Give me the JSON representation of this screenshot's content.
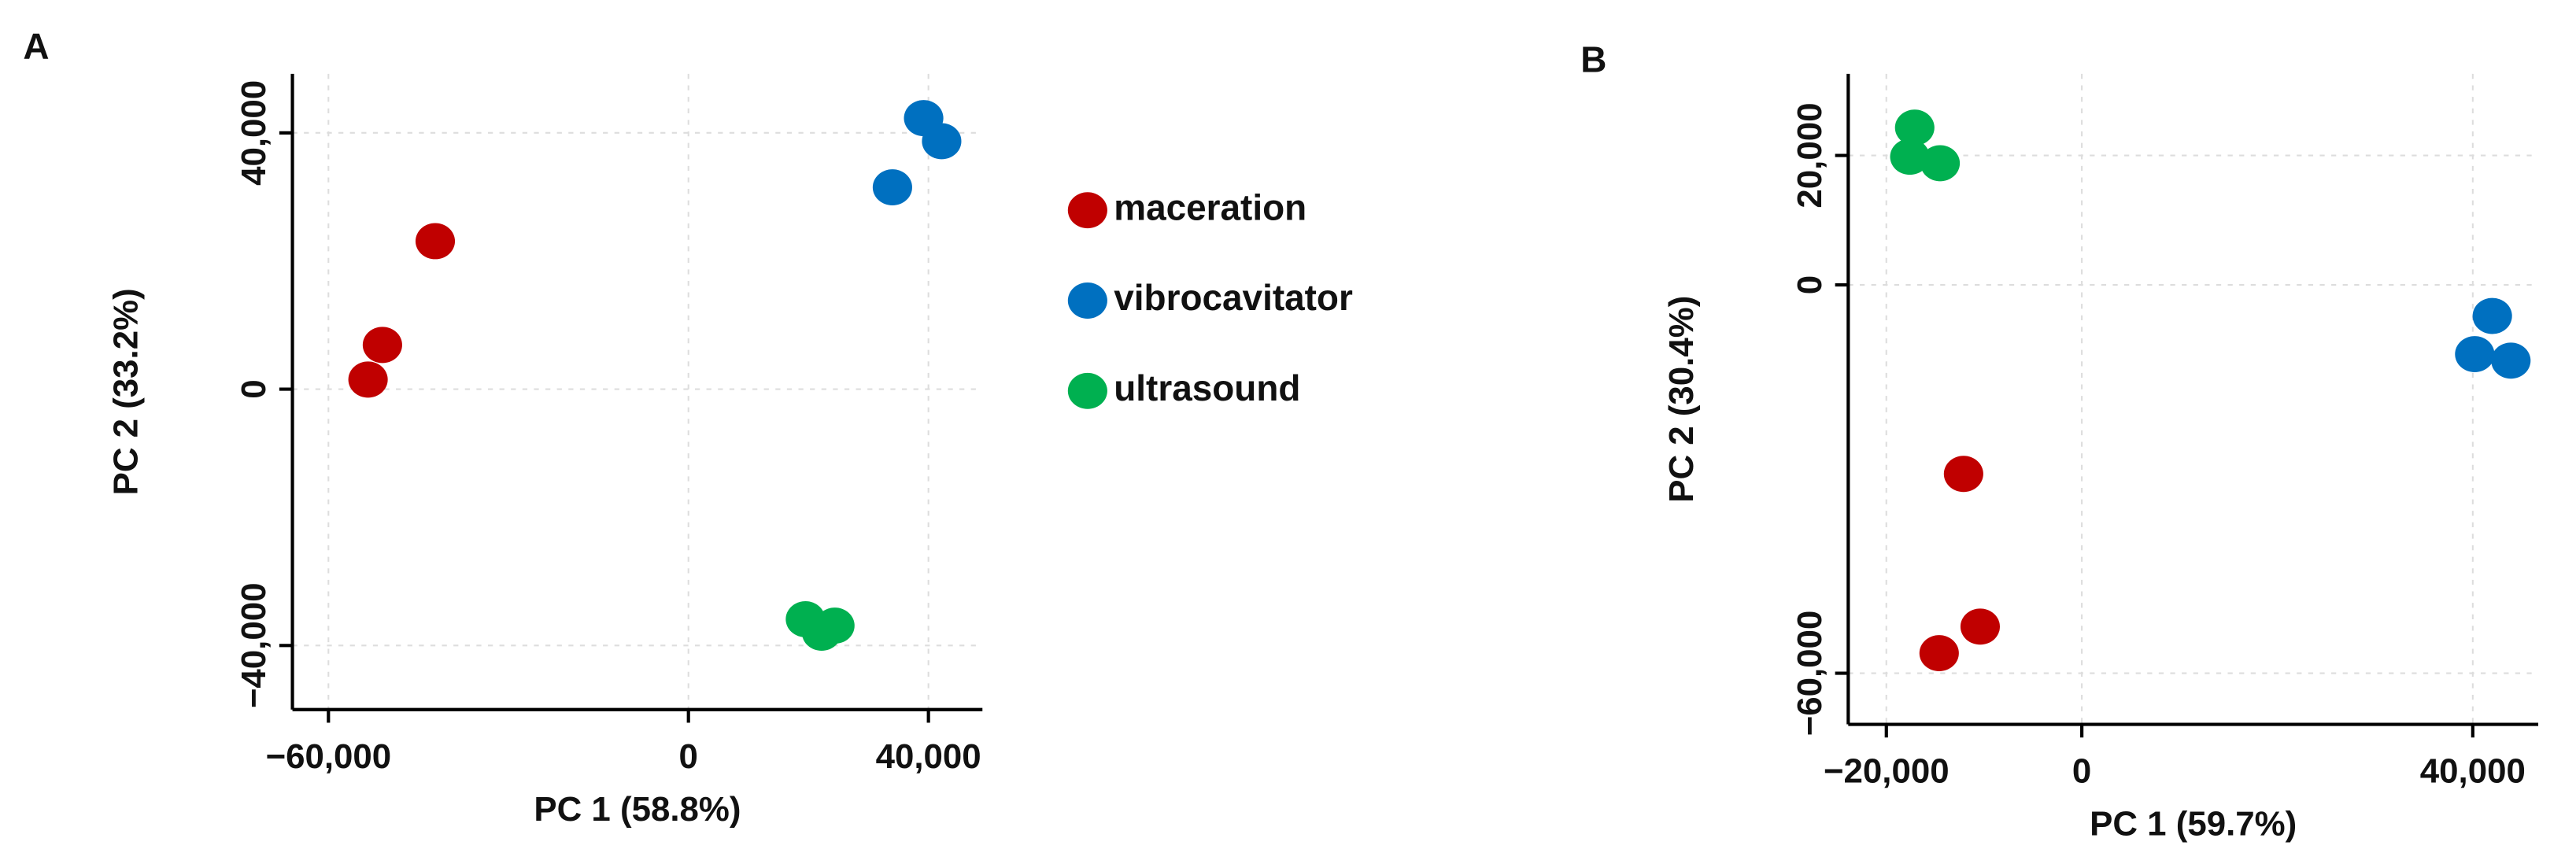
{
  "chart_data": [
    {
      "type": "scatter",
      "panel": "A",
      "xlabel": "PC 1 (58.8%)",
      "ylabel": "PC 2 (33.2%)",
      "xlim": [
        -66000,
        49000
      ],
      "ylim": [
        -50000,
        49200
      ],
      "xticks": [
        {
          "value": -60000,
          "label": "−60,000"
        },
        0,
        {
          "value": 40000,
          "label": "40,000"
        }
      ],
      "yticks": [
        {
          "value": -40000,
          "label": "−40,000"
        },
        0,
        {
          "value": 40000,
          "label": "40,000"
        }
      ],
      "grid": true,
      "legend": "right",
      "series": [
        {
          "name": "maceration",
          "color": "#c00000",
          "x": [
            -53400,
            -51000,
            -42200
          ],
          "y": [
            1500,
            6900,
            23100
          ]
        },
        {
          "name": "vibrocavitator",
          "color": "#0070c0",
          "x": [
            34000,
            39200,
            42200
          ],
          "y": [
            31500,
            42300,
            38700
          ]
        },
        {
          "name": "ultrasound",
          "color": "#00b050",
          "x": [
            19500,
            22200,
            24400
          ],
          "y": [
            -35900,
            -38000,
            -36900
          ]
        }
      ]
    },
    {
      "type": "scatter",
      "panel": "B",
      "xlabel": "PC 1 (59.7%)",
      "ylabel": "PC 2 (30.4%)",
      "xlim": [
        -23900,
        46700
      ],
      "ylim": [
        -67900,
        32600
      ],
      "xticks": [
        {
          "value": -20000,
          "label": "−20,000"
        },
        0,
        {
          "value": 40000,
          "label": "40,000"
        }
      ],
      "yticks": [
        {
          "value": -60000,
          "label": "−60,000"
        },
        0,
        {
          "value": 20000,
          "label": "20,000"
        }
      ],
      "grid": true,
      "series": [
        {
          "color": "#00b050",
          "x": [
            -17100,
            -17600,
            -14500
          ],
          "y": [
            24300,
            19800,
            18800
          ]
        },
        {
          "color": "#0070c0",
          "x": [
            40200,
            42000,
            43900
          ],
          "y": [
            -10700,
            -4800,
            -11700
          ]
        },
        {
          "color": "#c00000",
          "x": [
            -12100,
            -10400,
            -14600
          ],
          "y": [
            -29200,
            -52800,
            -56900
          ]
        }
      ]
    }
  ]
}
